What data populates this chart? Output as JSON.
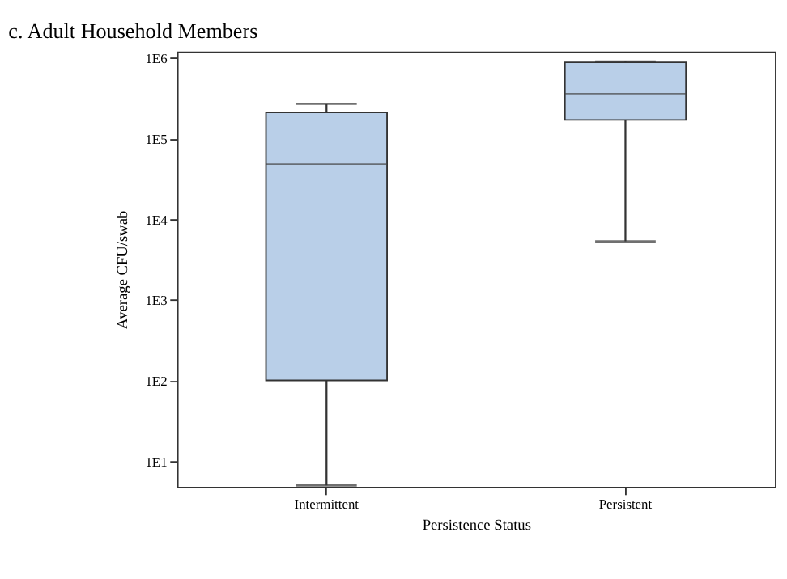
{
  "chart_data": {
    "type": "box",
    "title": "c.   Adult Household Members",
    "xlabel": "Persistence Status",
    "ylabel": "Average CFU/swab",
    "categories": [
      "Intermittent",
      "Persistent"
    ],
    "series": [
      {
        "color": "#b9cfe8",
        "boxes": [
          {
            "low": 5,
            "q1": 100,
            "median": 48000,
            "q3": 210000,
            "high": 270000
          },
          {
            "low": 5300,
            "q1": 170000,
            "median": 360000,
            "q3": 880000,
            "high": 900000
          }
        ]
      }
    ],
    "log": true,
    "ylim": [
      4.8,
      1200000
    ],
    "yticks": [
      {
        "value": 10,
        "label": "1E1"
      },
      {
        "value": 100,
        "label": "1E2"
      },
      {
        "value": 1000,
        "label": "1E3"
      },
      {
        "value": 10000,
        "label": "1E4"
      },
      {
        "value": 100000,
        "label": "1E5"
      },
      {
        "value": 1000000,
        "label": "1E6"
      }
    ],
    "grid": false
  }
}
